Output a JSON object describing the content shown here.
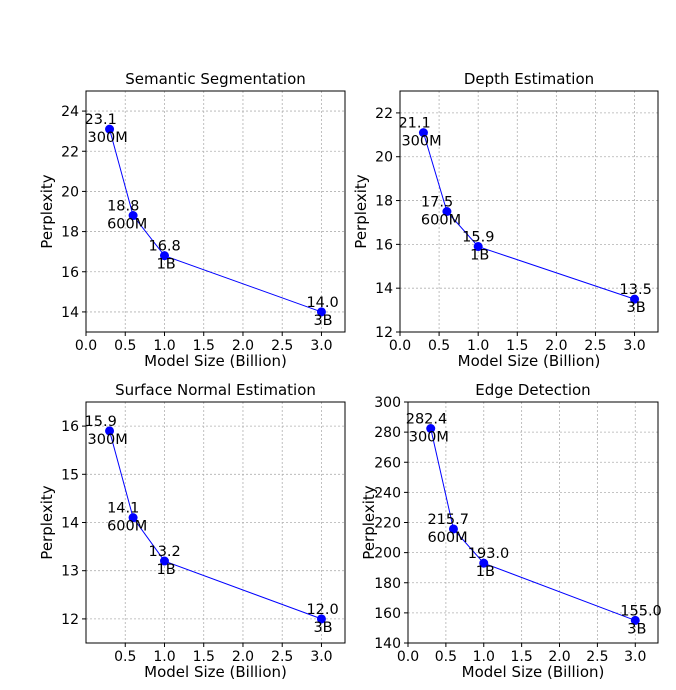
{
  "chart_data": [
    {
      "type": "line",
      "title": "Semantic Segmentation",
      "xlabel": "Model Size (Billion)",
      "ylabel": "Perplexity",
      "x": [
        0.3,
        0.6,
        1.0,
        3.0
      ],
      "y": [
        23.1,
        18.8,
        16.8,
        14.0
      ],
      "point_labels": [
        "23.1",
        "18.8",
        "16.8",
        "14.0"
      ],
      "size_labels": [
        "300M",
        "600M",
        "1B",
        "3B"
      ],
      "xlim": [
        0.0,
        3.3
      ],
      "ylim": [
        13.0,
        25.0
      ],
      "xticks": [
        "0.0",
        "0.5",
        "1.0",
        "1.5",
        "2.0",
        "2.5",
        "3.0"
      ],
      "yticks": [
        "14",
        "16",
        "18",
        "20",
        "22",
        "24"
      ],
      "grid": true
    },
    {
      "type": "line",
      "title": "Depth Estimation",
      "xlabel": "Model Size (Billion)",
      "ylabel": "Perplexity",
      "x": [
        0.3,
        0.6,
        1.0,
        3.0
      ],
      "y": [
        21.1,
        17.5,
        15.9,
        13.5
      ],
      "point_labels": [
        "21.1",
        "17.5",
        "15.9",
        "13.5"
      ],
      "size_labels": [
        "300M",
        "600M",
        "1B",
        "3B"
      ],
      "xlim": [
        0.0,
        3.3
      ],
      "ylim": [
        12.0,
        23.0
      ],
      "xticks": [
        "0.0",
        "0.5",
        "1.0",
        "1.5",
        "2.0",
        "2.5",
        "3.0"
      ],
      "yticks": [
        "12",
        "14",
        "16",
        "18",
        "20",
        "22"
      ],
      "grid": true
    },
    {
      "type": "line",
      "title": "Surface Normal Estimation",
      "xlabel": "Model Size (Billion)",
      "ylabel": "Perplexity",
      "x": [
        0.3,
        0.6,
        1.0,
        3.0
      ],
      "y": [
        15.9,
        14.1,
        13.2,
        12.0
      ],
      "point_labels": [
        "15.9",
        "14.1",
        "13.2",
        "12.0"
      ],
      "size_labels": [
        "300M",
        "600M",
        "1B",
        "3B"
      ],
      "xlim": [
        0.0,
        3.3
      ],
      "ylim": [
        11.5,
        16.5
      ],
      "xticks": [
        "0.5",
        "1.0",
        "1.5",
        "2.0",
        "2.5",
        "3.0"
      ],
      "yticks": [
        "12",
        "13",
        "14",
        "15",
        "16"
      ],
      "grid": true
    },
    {
      "type": "line",
      "title": "Edge Detection",
      "xlabel": "Model Size (Billion)",
      "ylabel": "Perplexity",
      "x": [
        0.3,
        0.6,
        1.0,
        3.0
      ],
      "y": [
        282.4,
        215.7,
        193.0,
        155.0
      ],
      "point_labels": [
        "282.4",
        "215.7",
        "193.0",
        "155.0"
      ],
      "size_labels": [
        "300M",
        "600M",
        "1B",
        "3B"
      ],
      "xlim": [
        0.0,
        3.3
      ],
      "ylim": [
        140.0,
        300.0
      ],
      "xticks": [
        "0.0",
        "0.5",
        "1.0",
        "1.5",
        "2.0",
        "2.5",
        "3.0"
      ],
      "yticks": [
        "140",
        "160",
        "180",
        "200",
        "220",
        "240",
        "260",
        "280",
        "300"
      ],
      "grid": true
    }
  ],
  "colors": {
    "series": "#0000ff",
    "grid": "#b0b0b0",
    "axis": "#000000"
  }
}
